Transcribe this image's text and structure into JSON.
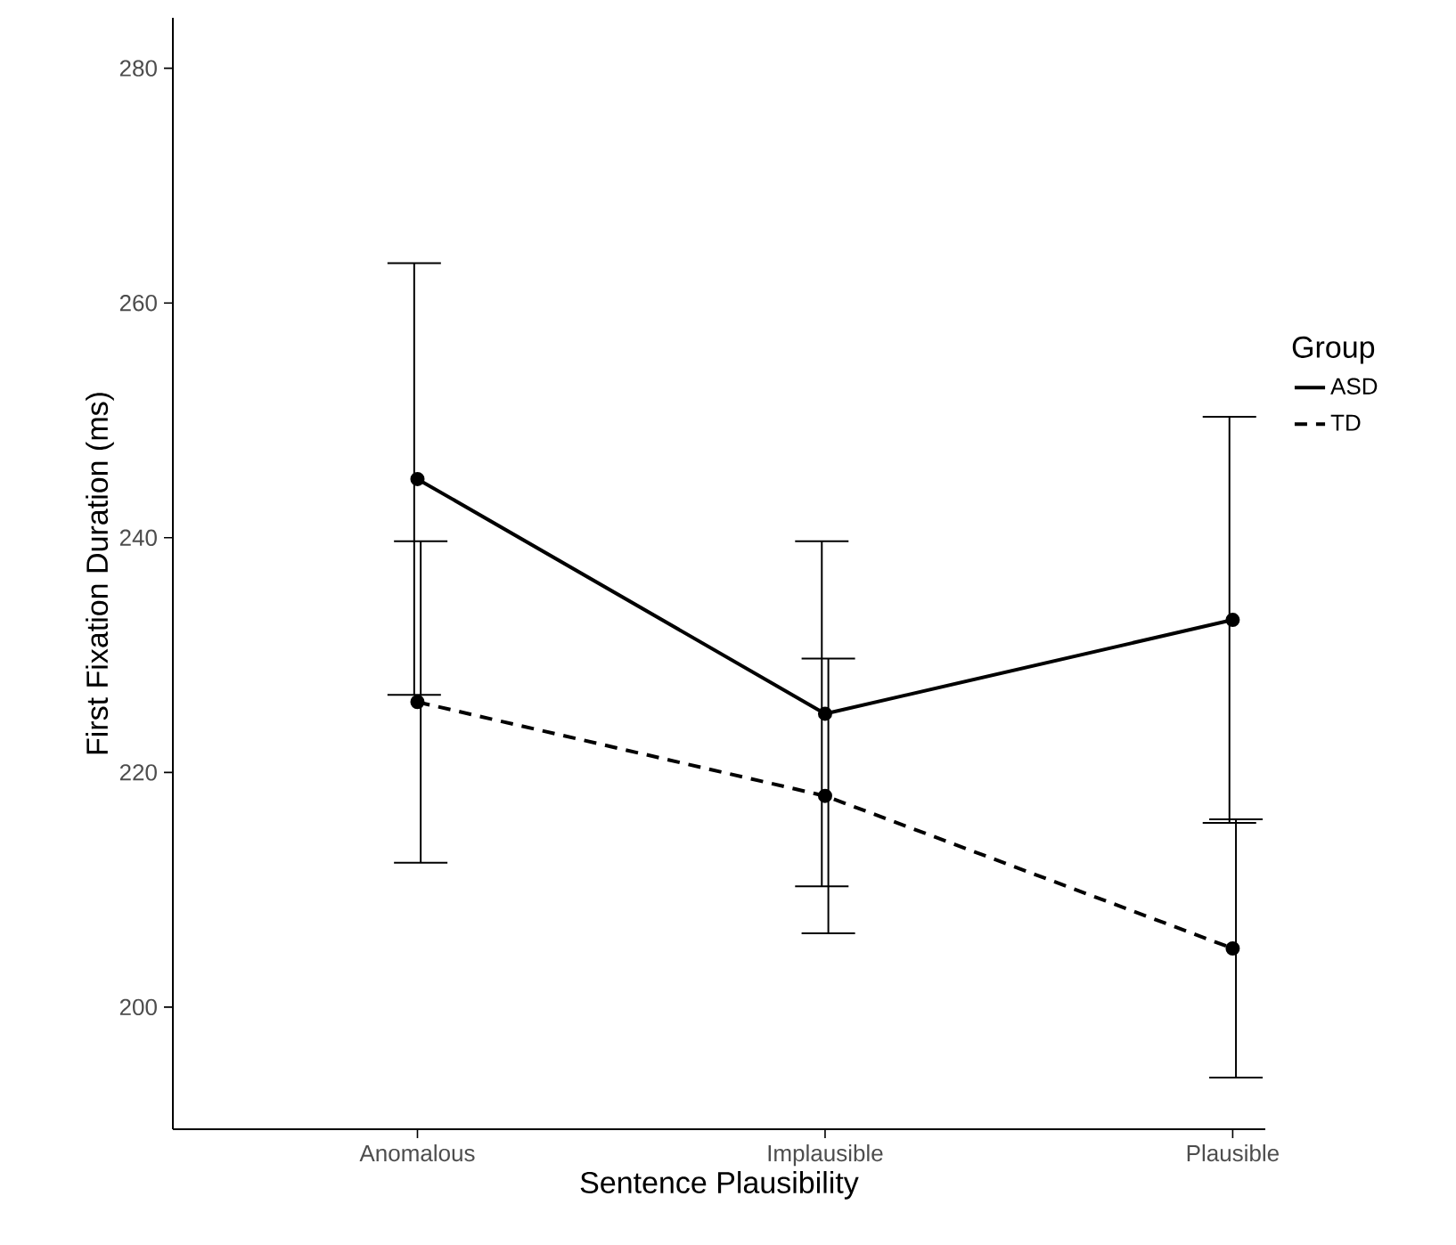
{
  "chart_data": {
    "type": "line",
    "xlabel": "Sentence Plausibility",
    "ylabel": "First Fixation Duration (ms)",
    "legend_title": "Group",
    "categories": [
      "Anomalous",
      "Implausible",
      "Plausible"
    ],
    "series": [
      {
        "name": "ASD",
        "color": "#000000",
        "line_style": "solid",
        "values": [
          245,
          225,
          233
        ],
        "errors": [
          18.4,
          14.7,
          17.3
        ]
      },
      {
        "name": "TD",
        "color": "#000000",
        "line_style": "dashed",
        "values": [
          226,
          218,
          205
        ],
        "errors": [
          13.7,
          11.7,
          11
        ]
      }
    ],
    "ylim": [
      189.6,
      284.3
    ],
    "yticks": [
      200,
      220,
      240,
      260,
      280
    ],
    "grid": false,
    "legend": "right",
    "marker": "circle"
  }
}
